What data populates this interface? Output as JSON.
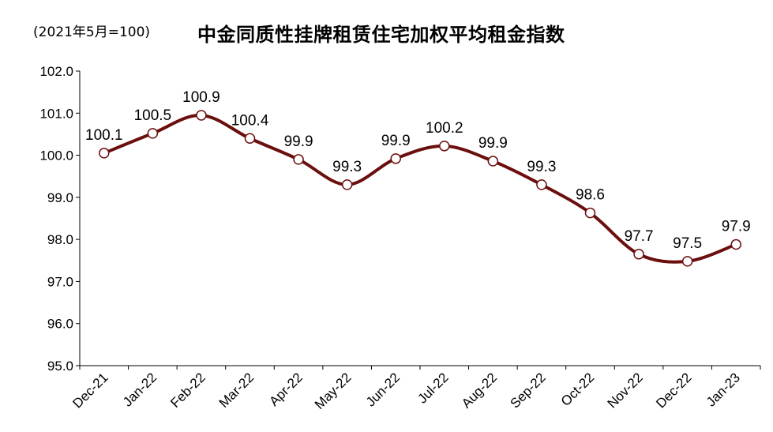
{
  "chart_data": {
    "type": "line",
    "title": "中金同质性挂牌租赁住宅加权平均租金指数",
    "subtitle": "(2021年5月=100)",
    "categories": [
      "Dec-21",
      "Jan-22",
      "Feb-22",
      "Mar-22",
      "Apr-22",
      "May-22",
      "Jun-22",
      "Jul-22",
      "Aug-22",
      "Sep-22",
      "Oct-22",
      "Nov-22",
      "Dec-22",
      "Jan-23"
    ],
    "series": [
      {
        "values": [
          100.1,
          100.5,
          100.9,
          100.4,
          99.9,
          99.3,
          99.9,
          100.2,
          99.9,
          99.3,
          98.6,
          97.7,
          97.5,
          97.9
        ],
        "plot_values": [
          100.05,
          100.52,
          100.95,
          100.4,
          99.9,
          99.3,
          99.92,
          100.22,
          99.86,
          99.3,
          98.63,
          97.65,
          97.48,
          97.88
        ]
      }
    ],
    "y_ticks": [
      "95.0",
      "96.0",
      "97.0",
      "98.0",
      "99.0",
      "100.0",
      "101.0",
      "102.0"
    ],
    "ylim": [
      95.0,
      102.0
    ],
    "xlabel": "",
    "ylabel": "",
    "grid": false,
    "line_color": "#6b0e0e",
    "marker_fill": "#ffffff",
    "legend": "none"
  }
}
